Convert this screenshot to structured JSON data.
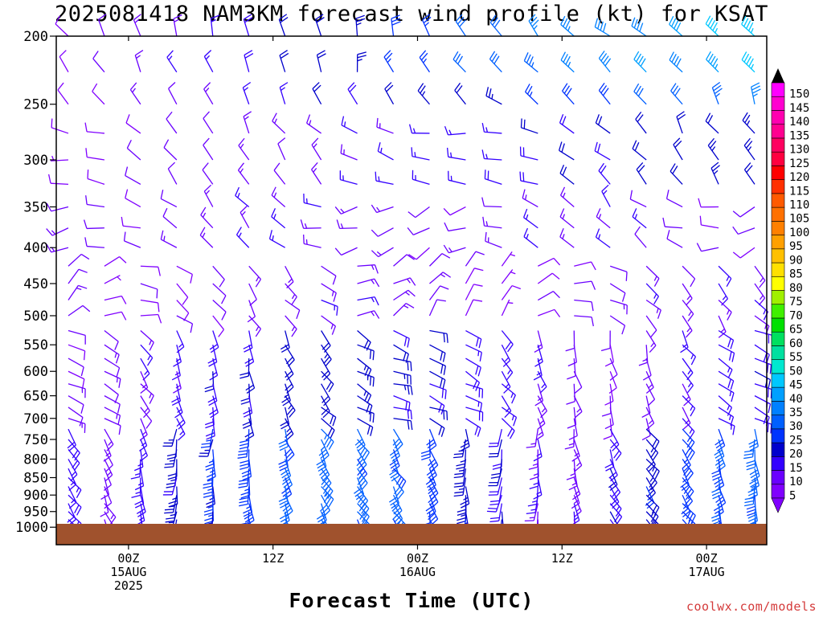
{
  "title": "2025081418 NAM3KM forecast wind profile (kt) for KSAT",
  "credit": "coolwx.com/models",
  "chart_data": {
    "type": "wind-barb",
    "title": "2025081418 NAM3KM forecast wind profile (kt) for KSAT",
    "xlabel": "Forecast Time (UTC)",
    "ylabel": "",
    "y_scale": "log-pressure",
    "ylim": [
      200,
      1000
    ],
    "y_ticks": [
      "200",
      "250",
      "300",
      "350",
      "400",
      "450",
      "500",
      "550",
      "600",
      "650",
      "700",
      "750",
      "800",
      "850",
      "900",
      "950",
      "1000"
    ],
    "x_ticks": [
      {
        "hour": 0,
        "lines": [
          "00Z",
          "15AUG",
          "2025"
        ]
      },
      {
        "hour": 12,
        "lines": [
          "12Z"
        ]
      },
      {
        "hour": 24,
        "lines": [
          "00Z",
          "16AUG"
        ]
      },
      {
        "hour": 36,
        "lines": [
          "12Z"
        ]
      },
      {
        "hour": 48,
        "lines": [
          "00Z",
          "17AUG"
        ]
      }
    ],
    "x_hours_range": [
      -6,
      53
    ],
    "surface_pressure": 985,
    "levels_hPa": [
      200,
      250,
      300,
      350,
      400,
      450,
      500,
      550,
      600,
      650,
      700,
      750,
      800,
      850,
      900,
      950,
      1000
    ],
    "wind_speed_kt_by_time_sample": [
      {
        "level": 200,
        "values": [
          10,
          10,
          15,
          20,
          25,
          30,
          35,
          35,
          40,
          45
        ]
      },
      {
        "level": 250,
        "values": [
          10,
          15,
          15,
          20,
          20,
          25,
          25,
          30,
          30,
          35
        ]
      },
      {
        "level": 300,
        "values": [
          10,
          10,
          10,
          15,
          15,
          15,
          15,
          20,
          20,
          25
        ]
      },
      {
        "level": 850,
        "values": [
          10,
          15,
          20,
          25,
          30,
          35,
          30,
          25,
          25,
          20
        ]
      }
    ],
    "colorbar": {
      "title": "",
      "levels": [
        "5",
        "10",
        "15",
        "20",
        "25",
        "30",
        "35",
        "40",
        "45",
        "50",
        "55",
        "60",
        "65",
        "70",
        "75",
        "80",
        "85",
        "90",
        "95",
        "100",
        "105",
        "110",
        "115",
        "120",
        "125",
        "130",
        "135",
        "140",
        "145",
        "150"
      ],
      "colors": [
        "#8000ff",
        "#6a00ff",
        "#3300ff",
        "#0000cc",
        "#0033ff",
        "#0060ff",
        "#0080ff",
        "#00a0ff",
        "#00c8ff",
        "#00e8d0",
        "#00e0a0",
        "#00e060",
        "#00e000",
        "#40f000",
        "#a0f000",
        "#ffff00",
        "#ffe000",
        "#ffc000",
        "#ffa000",
        "#ff8000",
        "#ff7000",
        "#ff5a00",
        "#ff3000",
        "#ff0000",
        "#ff0040",
        "#ff0060",
        "#ff0090",
        "#ff00b0",
        "#ff00d0",
        "#ff00ff"
      ]
    },
    "grid": false
  }
}
